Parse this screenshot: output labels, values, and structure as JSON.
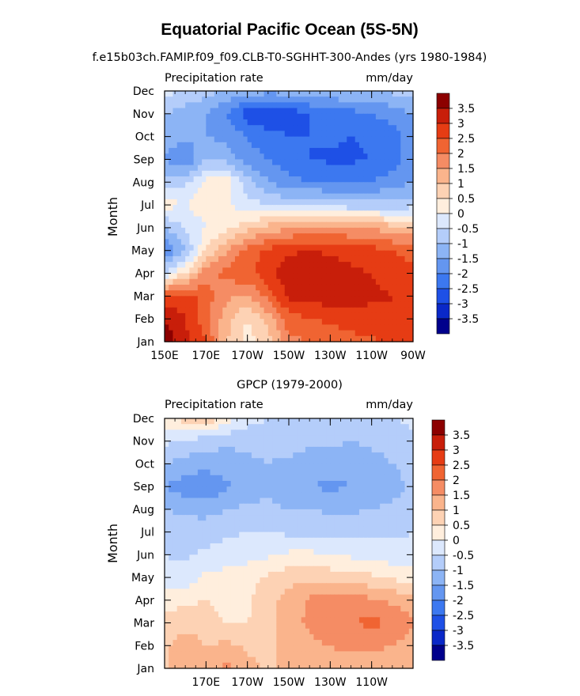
{
  "figure": {
    "title": "Equatorial Pacific Ocean (5S-5N)"
  },
  "colors": [
    "#00008c",
    "#0a28c8",
    "#1e50e6",
    "#3c78f0",
    "#6496f0",
    "#8cb4f5",
    "#b4cdfa",
    "#dce8fd",
    "#ffeedd",
    "#fdd2b4",
    "#fab48c",
    "#f58c64",
    "#f06432",
    "#e63c14",
    "#c81e0a",
    "#8c0000"
  ],
  "chart_data": [
    {
      "type": "heatmap",
      "subtitle": "f.e15b03ch.FAMIP.f09_f09.CLB-T0-SGHHT-300-Andes (yrs 1980-1984)",
      "left_label": "Precipitation rate",
      "right_label": "mm/day",
      "ylabel": "Month",
      "xlabel": "",
      "y_ticks": [
        "Jan",
        "Feb",
        "Mar",
        "Apr",
        "May",
        "Jun",
        "Jul",
        "Aug",
        "Sep",
        "Oct",
        "Nov",
        "Dec"
      ],
      "x_ticks": [
        "150E",
        "170E",
        "170W",
        "150W",
        "130W",
        "110W",
        "90W"
      ],
      "x_range_deg_east": [
        150,
        270
      ],
      "colorbar_levels": [
        "3.5",
        "3",
        "2.5",
        "2",
        "1.5",
        "1",
        "0.5",
        "0",
        "-0.5",
        "-1",
        "-1.5",
        "-2",
        "-2.5",
        "-3",
        "-3.5"
      ],
      "x_lon": [
        150,
        160,
        170,
        180,
        190,
        200,
        210,
        220,
        230,
        240,
        250,
        260,
        270
      ],
      "values": [
        [
          3.8,
          3.2,
          2.5,
          1.0,
          0.3,
          0.8,
          1.8,
          2.0,
          2.2,
          2.3,
          2.4,
          2.6,
          2.6
        ],
        [
          3.5,
          3.0,
          2.2,
          1.2,
          0.5,
          1.2,
          2.3,
          2.5,
          2.6,
          2.8,
          2.8,
          3.0,
          2.8
        ],
        [
          2.6,
          2.8,
          2.2,
          1.6,
          1.4,
          2.2,
          3.1,
          3.2,
          3.3,
          3.2,
          3.1,
          3.0,
          2.8
        ],
        [
          -0.5,
          0.5,
          1.8,
          2.2,
          2.4,
          2.8,
          3.3,
          3.4,
          3.3,
          3.1,
          3.0,
          2.8,
          2.6
        ],
        [
          -2.0,
          -1.0,
          0.5,
          1.5,
          2.2,
          2.6,
          2.9,
          3.0,
          2.9,
          2.8,
          2.7,
          2.5,
          2.3
        ],
        [
          -1.0,
          -0.5,
          0.0,
          0.3,
          0.8,
          1.2,
          1.4,
          1.6,
          1.6,
          1.5,
          1.4,
          1.2,
          1.0
        ],
        [
          0.2,
          0.0,
          0.3,
          0.1,
          -0.3,
          -0.5,
          -0.7,
          -0.6,
          -0.7,
          -0.8,
          -0.8,
          -0.8,
          -0.7
        ],
        [
          -0.8,
          -0.6,
          0.2,
          0.3,
          -0.8,
          -1.5,
          -1.8,
          -2.0,
          -2.0,
          -2.0,
          -2.0,
          -1.8,
          -1.5
        ],
        [
          -1.5,
          -2.0,
          -1.0,
          -1.2,
          -1.8,
          -2.0,
          -2.3,
          -2.5,
          -2.6,
          -2.6,
          -2.5,
          -2.2,
          -1.8
        ],
        [
          -1.2,
          -1.4,
          -1.5,
          -1.7,
          -2.0,
          -2.3,
          -2.5,
          -2.5,
          -2.4,
          -2.5,
          -2.4,
          -2.2,
          -1.8
        ],
        [
          -1.0,
          -1.2,
          -1.5,
          -2.0,
          -2.8,
          -3.0,
          -2.8,
          -2.5,
          -2.3,
          -2.2,
          -2.0,
          -1.8,
          -1.5
        ],
        [
          -0.3,
          -0.6,
          -0.8,
          -1.0,
          -1.2,
          -1.3,
          -1.3,
          -1.2,
          -1.1,
          -1.0,
          -1.0,
          -0.9,
          -0.8
        ]
      ]
    },
    {
      "type": "heatmap",
      "subtitle": "GPCP (1979-2000)",
      "left_label": "Precipitation rate",
      "right_label": "mm/day",
      "ylabel": "Month",
      "xlabel": "",
      "y_ticks": [
        "Jan",
        "Feb",
        "Mar",
        "Apr",
        "May",
        "Jun",
        "Jul",
        "Aug",
        "Sep",
        "Oct",
        "Nov",
        "Dec"
      ],
      "x_ticks": [
        "170E",
        "170W",
        "150W",
        "130W",
        "110W"
      ],
      "x_range_deg_east": [
        150,
        270
      ],
      "colorbar_levels": [
        "3.5",
        "3",
        "2.5",
        "2",
        "1.5",
        "1",
        "0.5",
        "0",
        "-0.5",
        "-1",
        "-1.5",
        "-2",
        "-2.5",
        "-3",
        "-3.5"
      ],
      "x_lon": [
        150,
        160,
        170,
        180,
        190,
        200,
        210,
        220,
        230,
        240,
        250,
        260,
        270
      ],
      "values": [
        [
          0.8,
          1.5,
          1.2,
          1.6,
          1.2,
          0.9,
          1.1,
          1.2,
          1.3,
          1.3,
          1.3,
          1.2,
          1.0
        ],
        [
          0.9,
          1.3,
          1.0,
          1.1,
          0.9,
          0.8,
          1.2,
          1.4,
          1.5,
          1.6,
          1.6,
          1.5,
          1.3
        ],
        [
          0.6,
          0.8,
          0.7,
          0.5,
          0.5,
          0.8,
          1.3,
          1.6,
          1.8,
          2.0,
          2.1,
          2.0,
          1.5
        ],
        [
          0.3,
          0.4,
          0.5,
          0.3,
          0.4,
          0.8,
          1.2,
          1.6,
          1.7,
          1.8,
          1.6,
          1.4,
          1.2
        ],
        [
          -0.3,
          -0.3,
          0.1,
          0.2,
          0.3,
          0.6,
          0.8,
          0.9,
          0.8,
          0.7,
          0.6,
          0.4,
          0.3
        ],
        [
          -0.5,
          -0.6,
          -0.4,
          -0.3,
          -0.2,
          -0.1,
          0.1,
          0.1,
          0.0,
          -0.1,
          -0.2,
          -0.3,
          -0.3
        ],
        [
          -0.6,
          -0.8,
          -0.7,
          -0.6,
          -0.5,
          -0.5,
          -0.6,
          -0.6,
          -0.6,
          -0.6,
          -0.6,
          -0.6,
          -0.5
        ],
        [
          -1.0,
          -1.1,
          -1.2,
          -1.0,
          -0.9,
          -0.9,
          -1.0,
          -1.0,
          -1.1,
          -1.1,
          -1.0,
          -0.9,
          -0.8
        ],
        [
          -1.5,
          -1.8,
          -2.0,
          -1.6,
          -1.3,
          -1.1,
          -1.3,
          -1.5,
          -1.6,
          -1.5,
          -1.4,
          -1.2,
          -0.9
        ],
        [
          -1.0,
          -1.2,
          -1.3,
          -1.2,
          -1.1,
          -1.0,
          -1.1,
          -1.2,
          -1.3,
          -1.3,
          -1.2,
          -1.0,
          -0.8
        ],
        [
          -0.4,
          -0.6,
          -0.8,
          -0.9,
          -0.9,
          -0.8,
          -0.8,
          -0.9,
          -0.9,
          -1.0,
          -0.9,
          -0.8,
          -0.6
        ],
        [
          0.2,
          0.8,
          1.0,
          0.3,
          -0.3,
          -0.5,
          -0.5,
          -0.5,
          -0.6,
          -0.6,
          -0.5,
          -0.5,
          -0.4
        ]
      ]
    }
  ]
}
